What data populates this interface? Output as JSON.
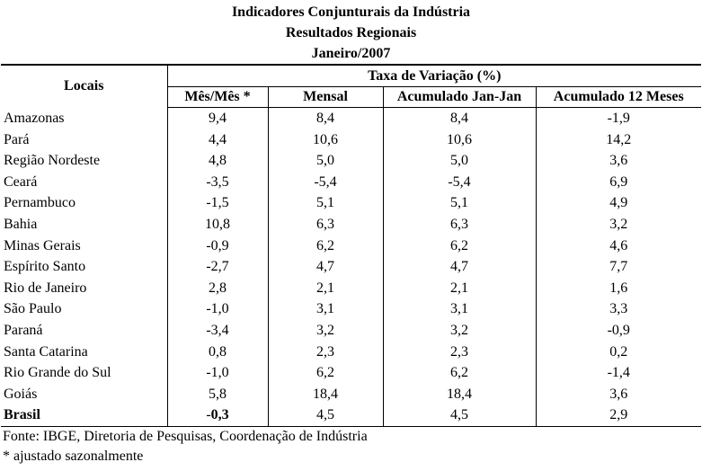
{
  "titles": {
    "line1": "Indicadores Conjunturais da Indústria",
    "line2": "Resultados Regionais",
    "line3": "Janeiro/2007"
  },
  "header": {
    "locais": "Locais",
    "group": "Taxa de Variação (%)",
    "columns": [
      "Mês/Mês *",
      "Mensal",
      "Acumulado Jan-Jan",
      "Acumulado 12 Meses"
    ]
  },
  "rows": [
    {
      "local": "Amazonas",
      "mes": "9,4",
      "mensal": "8,4",
      "jan": "8,4",
      "doze": "-1,9"
    },
    {
      "local": "Pará",
      "mes": "4,4",
      "mensal": "10,6",
      "jan": "10,6",
      "doze": "14,2"
    },
    {
      "local": "Região Nordeste",
      "mes": "4,8",
      "mensal": "5,0",
      "jan": "5,0",
      "doze": "3,6"
    },
    {
      "local": "Ceará",
      "mes": "-3,5",
      "mensal": "-5,4",
      "jan": "-5,4",
      "doze": "6,9"
    },
    {
      "local": "Pernambuco",
      "mes": "-1,5",
      "mensal": "5,1",
      "jan": "5,1",
      "doze": "4,9"
    },
    {
      "local": "Bahia",
      "mes": "10,8",
      "mensal": "6,3",
      "jan": "6,3",
      "doze": "3,2"
    },
    {
      "local": "Minas Gerais",
      "mes": "-0,9",
      "mensal": "6,2",
      "jan": "6,2",
      "doze": "4,6"
    },
    {
      "local": "Espírito Santo",
      "mes": "-2,7",
      "mensal": "4,7",
      "jan": "4,7",
      "doze": "7,7"
    },
    {
      "local": "Rio de Janeiro",
      "mes": "2,8",
      "mensal": "2,1",
      "jan": "2,1",
      "doze": "1,6"
    },
    {
      "local": "São Paulo",
      "mes": "-1,0",
      "mensal": "3,1",
      "jan": "3,1",
      "doze": "3,3"
    },
    {
      "local": "Paraná",
      "mes": "-3,4",
      "mensal": "3,2",
      "jan": "3,2",
      "doze": "-0,9"
    },
    {
      "local": "Santa Catarina",
      "mes": "0,8",
      "mensal": "2,3",
      "jan": "2,3",
      "doze": "0,2"
    },
    {
      "local": "Rio Grande do Sul",
      "mes": "-1,0",
      "mensal": "6,2",
      "jan": "6,2",
      "doze": "-1,4"
    },
    {
      "local": "Goiás",
      "mes": "5,8",
      "mensal": "18,4",
      "jan": "18,4",
      "doze": "3,6"
    }
  ],
  "brasil": {
    "local": "Brasil",
    "mes_prefix": "-",
    "mes_bold": "0,3",
    "mensal": "4,5",
    "jan": "4,5",
    "doze": "2,9"
  },
  "notes": {
    "source": "Fonte: IBGE, Diretoria de Pesquisas, Coordenação de Indústria",
    "footnote": "* ajustado sazonalmente"
  }
}
